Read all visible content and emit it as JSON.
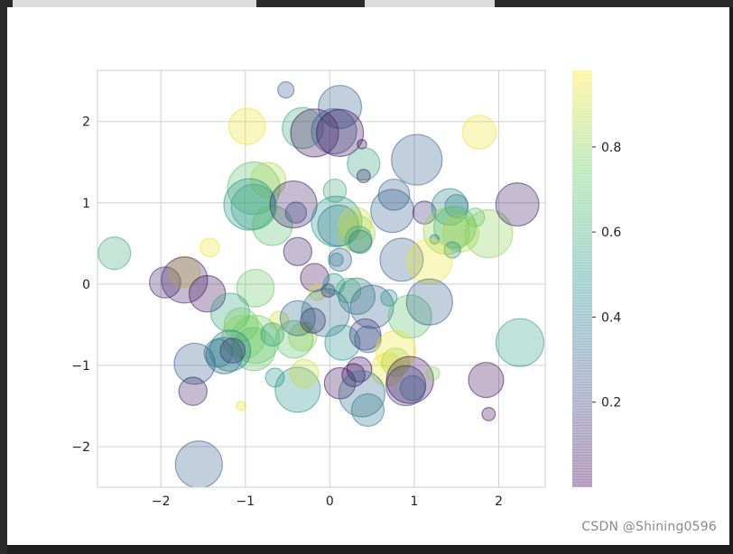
{
  "colors": {
    "page_background": "#1f1f1f",
    "figure_background": "#ffffff",
    "grid": "#d0d0d0",
    "axes_edge": "#cccccc",
    "tick_text": "#222222",
    "watermark": "#8a8a8a"
  },
  "watermark": "CSDN @Shining0596",
  "chart_data": {
    "type": "scatter",
    "style": "bubble scatter, seaborn-whitegrid, alpha 0.3, viridis colormap",
    "title": "",
    "xlabel": "",
    "ylabel": "",
    "xlim": [
      -2.75,
      2.55
    ],
    "ylim": [
      -2.5,
      2.63
    ],
    "grid": true,
    "xticks": [
      -2,
      -1,
      0,
      1,
      2
    ],
    "xtick_labels": [
      "−2",
      "−1",
      "0",
      "1",
      "2"
    ],
    "yticks": [
      -2,
      -1,
      0,
      1,
      2
    ],
    "ytick_labels": [
      "−2",
      "−1",
      "0",
      "1",
      "2"
    ],
    "colormap": "viridis",
    "alpha": 0.3,
    "colorbar": {
      "position": "right",
      "range": [
        0.0,
        0.98
      ],
      "ticks": [
        0.2,
        0.4,
        0.6,
        0.8
      ],
      "tick_labels": [
        "0.2",
        "0.4",
        "0.6",
        "0.8"
      ]
    },
    "points": [
      {
        "x": 0.12,
        "y": 2.18,
        "size": 2100,
        "color": 0.3
      },
      {
        "x": -0.52,
        "y": 2.39,
        "size": 300,
        "color": 0.3
      },
      {
        "x": -0.98,
        "y": 1.94,
        "size": 1500,
        "color": 0.95
      },
      {
        "x": -0.32,
        "y": 1.92,
        "size": 1900,
        "color": 0.6
      },
      {
        "x": -0.18,
        "y": 1.86,
        "size": 2600,
        "color": 0.05
      },
      {
        "x": 0.05,
        "y": 1.88,
        "size": 2300,
        "color": 0.3
      },
      {
        "x": 0.12,
        "y": 1.86,
        "size": 2500,
        "color": 0.05
      },
      {
        "x": 0.38,
        "y": 1.72,
        "size": 100,
        "color": 0.02
      },
      {
        "x": 0.4,
        "y": 1.48,
        "size": 1200,
        "color": 0.55
      },
      {
        "x": 0.4,
        "y": 1.33,
        "size": 200,
        "color": 0.1
      },
      {
        "x": 1.03,
        "y": 1.53,
        "size": 2900,
        "color": 0.3
      },
      {
        "x": 1.77,
        "y": 1.87,
        "size": 1300,
        "color": 0.95
      },
      {
        "x": -0.9,
        "y": 1.18,
        "size": 3100,
        "color": 0.7
      },
      {
        "x": -0.73,
        "y": 1.28,
        "size": 1400,
        "color": 0.85
      },
      {
        "x": -0.9,
        "y": 0.95,
        "size": 2300,
        "color": 0.6
      },
      {
        "x": -0.95,
        "y": 0.98,
        "size": 3000,
        "color": 0.5
      },
      {
        "x": -0.68,
        "y": 0.72,
        "size": 1800,
        "color": 0.7
      },
      {
        "x": -0.43,
        "y": 0.98,
        "size": 2500,
        "color": 0.1
      },
      {
        "x": -0.4,
        "y": 0.88,
        "size": 500,
        "color": 0.2
      },
      {
        "x": 0.06,
        "y": 1.15,
        "size": 600,
        "color": 0.6
      },
      {
        "x": 0.08,
        "y": 0.77,
        "size": 2900,
        "color": 0.5
      },
      {
        "x": 0.1,
        "y": 0.72,
        "size": 1900,
        "color": 0.4
      },
      {
        "x": 0.3,
        "y": 0.75,
        "size": 1200,
        "color": 0.9
      },
      {
        "x": 0.32,
        "y": 0.62,
        "size": 1500,
        "color": 0.85
      },
      {
        "x": 0.34,
        "y": 0.55,
        "size": 800,
        "color": 0.6
      },
      {
        "x": 0.36,
        "y": 0.52,
        "size": 600,
        "color": 0.4
      },
      {
        "x": 0.76,
        "y": 1.1,
        "size": 1100,
        "color": 0.3
      },
      {
        "x": 0.74,
        "y": 0.9,
        "size": 2100,
        "color": 0.3
      },
      {
        "x": 1.12,
        "y": 0.88,
        "size": 600,
        "color": 0.15
      },
      {
        "x": 1.42,
        "y": 0.95,
        "size": 1500,
        "color": 0.45
      },
      {
        "x": 1.5,
        "y": 0.96,
        "size": 600,
        "color": 0.4
      },
      {
        "x": 1.38,
        "y": 0.65,
        "size": 2400,
        "color": 0.8
      },
      {
        "x": 1.48,
        "y": 0.7,
        "size": 2000,
        "color": 0.65
      },
      {
        "x": 1.55,
        "y": 0.62,
        "size": 1500,
        "color": 0.85
      },
      {
        "x": 1.72,
        "y": 0.82,
        "size": 400,
        "color": 0.7
      },
      {
        "x": 1.88,
        "y": 0.62,
        "size": 2600,
        "color": 0.8
      },
      {
        "x": 2.22,
        "y": 0.98,
        "size": 2100,
        "color": 0.1
      },
      {
        "x": 1.24,
        "y": 0.55,
        "size": 100,
        "color": 0.4
      },
      {
        "x": 1.45,
        "y": 0.42,
        "size": 300,
        "color": 0.5
      },
      {
        "x": 0.85,
        "y": 0.3,
        "size": 2100,
        "color": 0.3
      },
      {
        "x": 1.18,
        "y": 0.28,
        "size": 2300,
        "color": 0.95
      },
      {
        "x": -2.55,
        "y": 0.38,
        "size": 1200,
        "color": 0.6
      },
      {
        "x": -1.42,
        "y": 0.45,
        "size": 400,
        "color": 0.95
      },
      {
        "x": -0.38,
        "y": 0.4,
        "size": 900,
        "color": 0.1
      },
      {
        "x": 0.08,
        "y": 0.3,
        "size": 200,
        "color": 0.5
      },
      {
        "x": 0.12,
        "y": 0.3,
        "size": 600,
        "color": 0.3
      },
      {
        "x": -1.95,
        "y": 0.02,
        "size": 1100,
        "color": 0.1
      },
      {
        "x": -1.72,
        "y": 0.15,
        "size": 1100,
        "color": 0.95
      },
      {
        "x": -1.72,
        "y": 0.05,
        "size": 2400,
        "color": 0.1
      },
      {
        "x": -1.45,
        "y": -0.12,
        "size": 1500,
        "color": 0.05
      },
      {
        "x": -0.88,
        "y": -0.05,
        "size": 1600,
        "color": 0.75
      },
      {
        "x": -0.18,
        "y": 0.08,
        "size": 900,
        "color": 0.05
      },
      {
        "x": -0.15,
        "y": -0.1,
        "size": 300,
        "color": 0.9
      },
      {
        "x": -0.02,
        "y": -0.08,
        "size": 200,
        "color": 0.05
      },
      {
        "x": 0.05,
        "y": 0.0,
        "size": 500,
        "color": 0.5
      },
      {
        "x": 0.22,
        "y": -0.08,
        "size": 700,
        "color": 0.65
      },
      {
        "x": 0.32,
        "y": -0.15,
        "size": 1500,
        "color": 0.4
      },
      {
        "x": 0.5,
        "y": -0.28,
        "size": 2100,
        "color": 0.3
      },
      {
        "x": 0.7,
        "y": -0.17,
        "size": 300,
        "color": 0.5
      },
      {
        "x": 0.95,
        "y": -0.4,
        "size": 2100,
        "color": 0.7
      },
      {
        "x": 1.18,
        "y": -0.22,
        "size": 2400,
        "color": 0.3
      },
      {
        "x": -1.18,
        "y": -0.35,
        "size": 1700,
        "color": 0.55
      },
      {
        "x": -1.05,
        "y": -0.5,
        "size": 1300,
        "color": 0.75
      },
      {
        "x": -1.02,
        "y": -0.65,
        "size": 2100,
        "color": 0.8
      },
      {
        "x": -0.88,
        "y": -0.68,
        "size": 2600,
        "color": 0.75
      },
      {
        "x": -0.9,
        "y": -0.8,
        "size": 2100,
        "color": 0.7
      },
      {
        "x": -0.6,
        "y": -0.45,
        "size": 400,
        "color": 0.9
      },
      {
        "x": -0.68,
        "y": -0.62,
        "size": 600,
        "color": 0.55
      },
      {
        "x": -0.32,
        "y": -0.65,
        "size": 900,
        "color": 0.85
      },
      {
        "x": -0.42,
        "y": -0.68,
        "size": 1600,
        "color": 0.7
      },
      {
        "x": -0.28,
        "y": -0.55,
        "size": 200,
        "color": 0.9
      },
      {
        "x": -0.38,
        "y": -0.42,
        "size": 1400,
        "color": 0.35
      },
      {
        "x": -0.2,
        "y": -0.45,
        "size": 700,
        "color": 0.1
      },
      {
        "x": -0.05,
        "y": -0.35,
        "size": 2600,
        "color": 0.35
      },
      {
        "x": 0.15,
        "y": -0.72,
        "size": 1400,
        "color": 0.5
      },
      {
        "x": 0.42,
        "y": -0.62,
        "size": 1100,
        "color": 0.15
      },
      {
        "x": 0.45,
        "y": -0.68,
        "size": 800,
        "color": 0.3
      },
      {
        "x": 0.78,
        "y": -0.82,
        "size": 1800,
        "color": 0.95
      },
      {
        "x": 0.68,
        "y": -1.05,
        "size": 1200,
        "color": 0.95
      },
      {
        "x": 0.78,
        "y": -0.96,
        "size": 900,
        "color": 0.85
      },
      {
        "x": -1.32,
        "y": -0.85,
        "size": 900,
        "color": 0.4
      },
      {
        "x": -1.25,
        "y": -0.88,
        "size": 1500,
        "color": 0.35
      },
      {
        "x": -1.18,
        "y": -0.82,
        "size": 1900,
        "color": 0.45
      },
      {
        "x": -1.15,
        "y": -0.82,
        "size": 700,
        "color": 0.15
      },
      {
        "x": -1.6,
        "y": -0.98,
        "size": 1900,
        "color": 0.3
      },
      {
        "x": -1.62,
        "y": -1.32,
        "size": 900,
        "color": 0.1
      },
      {
        "x": -0.65,
        "y": -1.15,
        "size": 400,
        "color": 0.5
      },
      {
        "x": -0.38,
        "y": -1.3,
        "size": 2300,
        "color": 0.5
      },
      {
        "x": -0.3,
        "y": -1.1,
        "size": 900,
        "color": 0.9
      },
      {
        "x": 0.12,
        "y": -1.22,
        "size": 1100,
        "color": 0.05
      },
      {
        "x": 0.28,
        "y": -1.12,
        "size": 600,
        "color": 0.05
      },
      {
        "x": 0.35,
        "y": -1.05,
        "size": 700,
        "color": 0.05
      },
      {
        "x": 0.38,
        "y": -1.35,
        "size": 2400,
        "color": 0.35
      },
      {
        "x": 0.45,
        "y": -1.55,
        "size": 1200,
        "color": 0.4
      },
      {
        "x": 0.9,
        "y": -1.25,
        "size": 1800,
        "color": 0.2
      },
      {
        "x": 0.95,
        "y": -1.18,
        "size": 2500,
        "color": 0.05
      },
      {
        "x": 0.98,
        "y": -1.28,
        "size": 700,
        "color": 0.3
      },
      {
        "x": 1.22,
        "y": -1.1,
        "size": 200,
        "color": 0.8
      },
      {
        "x": 1.85,
        "y": -1.18,
        "size": 1400,
        "color": 0.05
      },
      {
        "x": 1.88,
        "y": -1.6,
        "size": 200,
        "color": 0.05
      },
      {
        "x": 2.25,
        "y": -0.72,
        "size": 2600,
        "color": 0.55
      },
      {
        "x": -1.05,
        "y": -1.5,
        "size": 100,
        "color": 0.95
      },
      {
        "x": -1.55,
        "y": -2.22,
        "size": 2500,
        "color": 0.3
      }
    ]
  }
}
